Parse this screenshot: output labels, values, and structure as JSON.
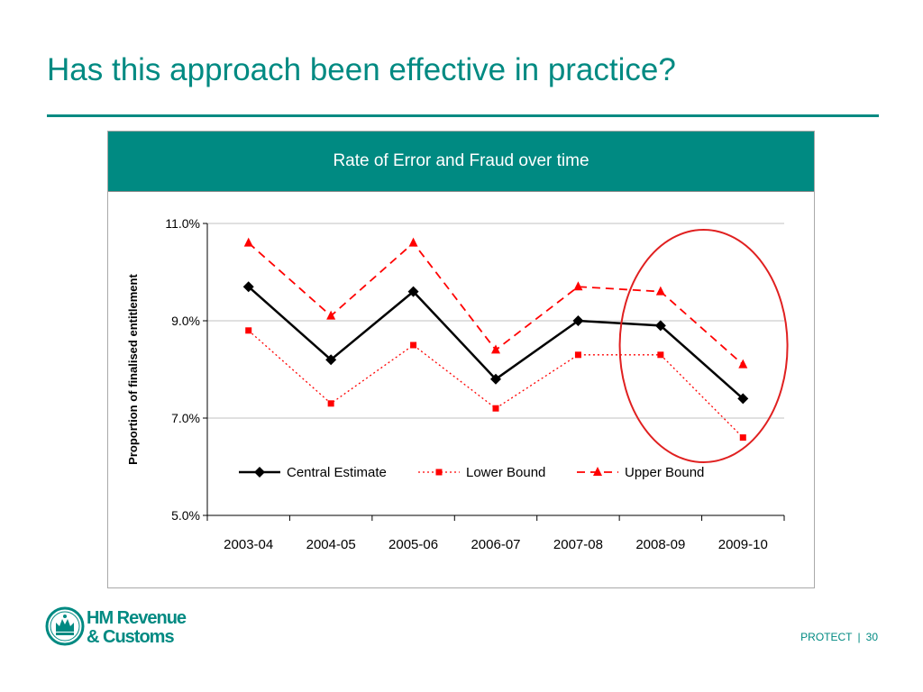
{
  "slide": {
    "title": "Has this approach been effective in practice?"
  },
  "chart_data": {
    "type": "line",
    "title": "Rate of Error and Fraud over time",
    "ylabel": "Proportion of finalised entitlement",
    "xlabel": "",
    "categories": [
      "2003-04",
      "2004-05",
      "2005-06",
      "2006-07",
      "2007-08",
      "2008-09",
      "2009-10"
    ],
    "ylim": [
      5.0,
      11.0
    ],
    "yticks": [
      "5.0%",
      "7.0%",
      "9.0%",
      "11.0%"
    ],
    "grid": true,
    "legend_position": "inside-bottom",
    "series": [
      {
        "name": "Central Estimate",
        "values": [
          9.7,
          8.2,
          9.6,
          7.8,
          9.0,
          8.9,
          7.4
        ],
        "color": "#000000",
        "style": "solid",
        "marker": "diamond"
      },
      {
        "name": "Lower Bound",
        "values": [
          8.8,
          7.3,
          8.5,
          7.2,
          8.3,
          8.3,
          6.6
        ],
        "color": "#ff0000",
        "style": "dotted",
        "marker": "square"
      },
      {
        "name": "Upper Bound",
        "values": [
          10.6,
          9.1,
          10.6,
          8.4,
          9.7,
          9.6,
          8.1
        ],
        "color": "#ff0000",
        "style": "dashed",
        "marker": "triangle"
      }
    ],
    "annotation": {
      "shape": "ellipse",
      "color": "#e02020",
      "highlights": [
        "2008-09",
        "2009-10"
      ]
    }
  },
  "footer": {
    "logo_line1": "HM Revenue",
    "logo_line2": "& Customs",
    "classification": "PROTECT",
    "separator": "|",
    "page_number": "30"
  },
  "colors": {
    "brand_teal": "#008a82",
    "grid": "#c0c0c0"
  }
}
